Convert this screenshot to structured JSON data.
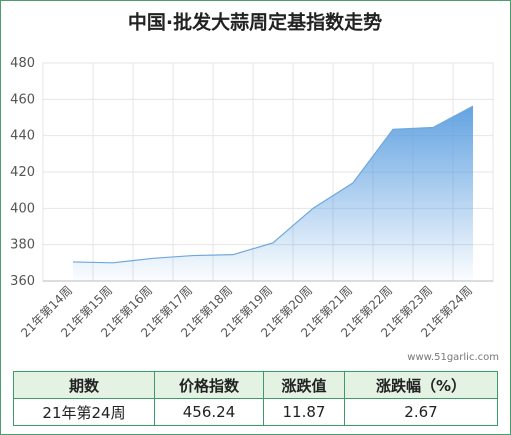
{
  "chart_data": {
    "type": "area",
    "title": "中国·批发大蒜周定基指数走势",
    "categories": [
      "21年第14周",
      "21年第15周",
      "21年第16周",
      "21年第17周",
      "21年第18周",
      "21年第19周",
      "21年第20周",
      "21年第21周",
      "21年第22周",
      "21年第23周",
      "21年第24周"
    ],
    "values": [
      370.5,
      370,
      372.5,
      374,
      374.5,
      381,
      400,
      414,
      443.5,
      444.5,
      456.24
    ],
    "color": "#6fa8dc",
    "ylim": [
      360,
      480
    ],
    "yticks": [
      360,
      380,
      400,
      420,
      440,
      460,
      480
    ],
    "grid": true
  },
  "watermark": "www.51garlic.com",
  "table": {
    "header": [
      "期数",
      "价格指数",
      "涨跌值",
      "涨跌幅（%）"
    ],
    "rows": [
      [
        "21年第24周",
        456.24,
        11.87,
        2.67
      ]
    ]
  }
}
